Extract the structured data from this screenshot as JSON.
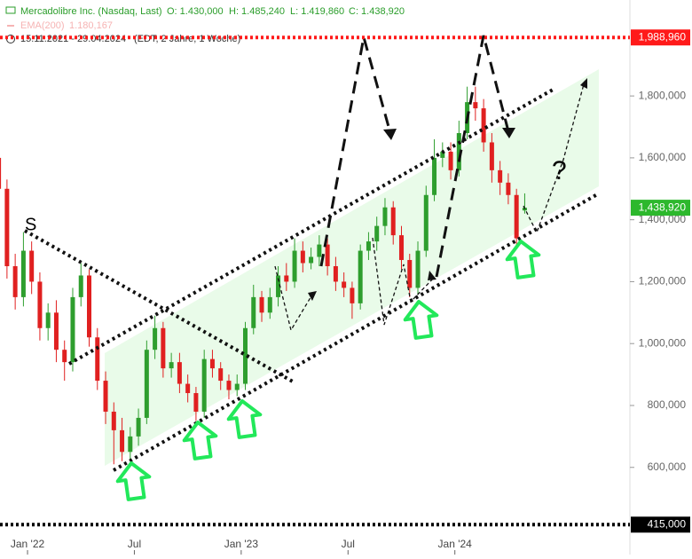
{
  "chart_data": {
    "type": "candlestick",
    "header": {
      "name": "Mercadolibre Inc. (Nasdaq, Last)",
      "open": "O: 1.430,000",
      "high": "H: 1.485,240",
      "low": "L: 1.419,860",
      "close": "C: 1.438,920",
      "ema": "EMA(200)",
      "ema_value": "1.180,167",
      "range": "15.11.2021 - 29.04.2024",
      "range_note": "(EDT, 2 Jahre, 1 Woche)"
    },
    "x": [
      -7,
      -5,
      -3,
      -1,
      1,
      3,
      5,
      7,
      9,
      11,
      13,
      15,
      17,
      19,
      21,
      23,
      25,
      27,
      29,
      31,
      33,
      35,
      37,
      39,
      41,
      43,
      45,
      47,
      49,
      51,
      53,
      55,
      57,
      59,
      61,
      63,
      65,
      67,
      69,
      71,
      73,
      75,
      77,
      79,
      81,
      83,
      85,
      87,
      89,
      91,
      93,
      95,
      97,
      99,
      101,
      103,
      105,
      107,
      109,
      111,
      113,
      115,
      117,
      119,
      121
    ],
    "open": [
      1600000,
      1500000,
      1250000,
      1150000,
      1300000,
      1200000,
      1050000,
      1100000,
      980000,
      940000,
      1150000,
      1220000,
      1020000,
      880000,
      780000,
      720000,
      650000,
      700000,
      760000,
      980000,
      1050000,
      920000,
      940000,
      870000,
      840000,
      780000,
      950000,
      920000,
      880000,
      850000,
      870000,
      1050000,
      1150000,
      1100000,
      1150000,
      1220000,
      1200000,
      1300000,
      1260000,
      1280000,
      1320000,
      1250000,
      1200000,
      1180000,
      1130000,
      1300000,
      1330000,
      1380000,
      1440000,
      1350000,
      1270000,
      1180000,
      1300000,
      1480000,
      1600000,
      1620000,
      1560000,
      1680000,
      1780000,
      1760000,
      1650000,
      1560000,
      1520000,
      1480000,
      1430000
    ],
    "high": [
      1640000,
      1530000,
      1290000,
      1360000,
      1330000,
      1230000,
      1130000,
      1140000,
      1010000,
      1180000,
      1260000,
      1240000,
      1050000,
      910000,
      810000,
      760000,
      730000,
      790000,
      1010000,
      1090000,
      1070000,
      970000,
      970000,
      900000,
      860000,
      980000,
      980000,
      940000,
      900000,
      900000,
      1070000,
      1190000,
      1170000,
      1180000,
      1250000,
      1260000,
      1340000,
      1330000,
      1310000,
      1350000,
      1340000,
      1280000,
      1230000,
      1200000,
      1320000,
      1360000,
      1410000,
      1470000,
      1460000,
      1380000,
      1290000,
      1330000,
      1510000,
      1660000,
      1650000,
      1650000,
      1720000,
      1830000,
      1830000,
      1790000,
      1680000,
      1590000,
      1550000,
      1500000,
      1485240
    ],
    "low": [
      1460000,
      1210000,
      1110000,
      1120000,
      1160000,
      1010000,
      1010000,
      940000,
      880000,
      910000,
      1120000,
      990000,
      850000,
      740000,
      610000,
      620000,
      620000,
      670000,
      740000,
      950000,
      890000,
      890000,
      840000,
      810000,
      750000,
      760000,
      890000,
      850000,
      820000,
      830000,
      850000,
      1030000,
      1070000,
      1080000,
      1120000,
      1170000,
      1180000,
      1230000,
      1240000,
      1250000,
      1220000,
      1170000,
      1150000,
      1080000,
      1110000,
      1270000,
      1300000,
      1350000,
      1320000,
      1240000,
      1150000,
      1160000,
      1280000,
      1460000,
      1570000,
      1530000,
      1540000,
      1660000,
      1720000,
      1620000,
      1520000,
      1480000,
      1450000,
      1310000,
      1419860
    ],
    "close": [
      1500000,
      1250000,
      1150000,
      1300000,
      1200000,
      1050000,
      1100000,
      980000,
      940000,
      1150000,
      1220000,
      1020000,
      880000,
      780000,
      720000,
      650000,
      700000,
      760000,
      980000,
      1050000,
      920000,
      940000,
      870000,
      840000,
      780000,
      950000,
      920000,
      880000,
      850000,
      870000,
      1050000,
      1150000,
      1100000,
      1150000,
      1220000,
      1200000,
      1300000,
      1260000,
      1280000,
      1320000,
      1250000,
      1200000,
      1180000,
      1130000,
      1300000,
      1330000,
      1380000,
      1440000,
      1350000,
      1270000,
      1180000,
      1300000,
      1480000,
      1600000,
      1620000,
      1560000,
      1680000,
      1780000,
      1760000,
      1650000,
      1560000,
      1520000,
      1480000,
      1340000,
      1438920
    ],
    "up_color": "#2e9e2e",
    "down_color": "#e02020",
    "xlim": [
      -6.7,
      146.6
    ],
    "xticks": [
      {
        "value": 0,
        "label": "Jan '22"
      },
      {
        "value": 26,
        "label": "Jul"
      },
      {
        "value": 52,
        "label": "Jan '23"
      },
      {
        "value": 78,
        "label": "Jul"
      },
      {
        "value": 104,
        "label": "Jan '24"
      }
    ],
    "ylim": [
      390000,
      2110000
    ],
    "yticks": [
      {
        "value": 600000,
        "label": "600,000"
      },
      {
        "value": 800000,
        "label": "800,000"
      },
      {
        "value": 1000000,
        "label": "1,000,000"
      },
      {
        "value": 1200000,
        "label": "1,200,000"
      },
      {
        "value": 1400000,
        "label": "1,400,000"
      },
      {
        "value": 1600000,
        "label": "1,600,000"
      },
      {
        "value": 1800000,
        "label": "1,800,000"
      }
    ],
    "levels": [
      {
        "value": 1988960,
        "label": "1,988,960",
        "color": "#ff1a1a"
      },
      {
        "value": 415000,
        "label": "415,000",
        "color": "#000000"
      }
    ],
    "last_price": {
      "value": 1438920,
      "label": "1,438,920",
      "color": "#2db82d"
    },
    "annotations": [
      "S",
      "?"
    ]
  }
}
